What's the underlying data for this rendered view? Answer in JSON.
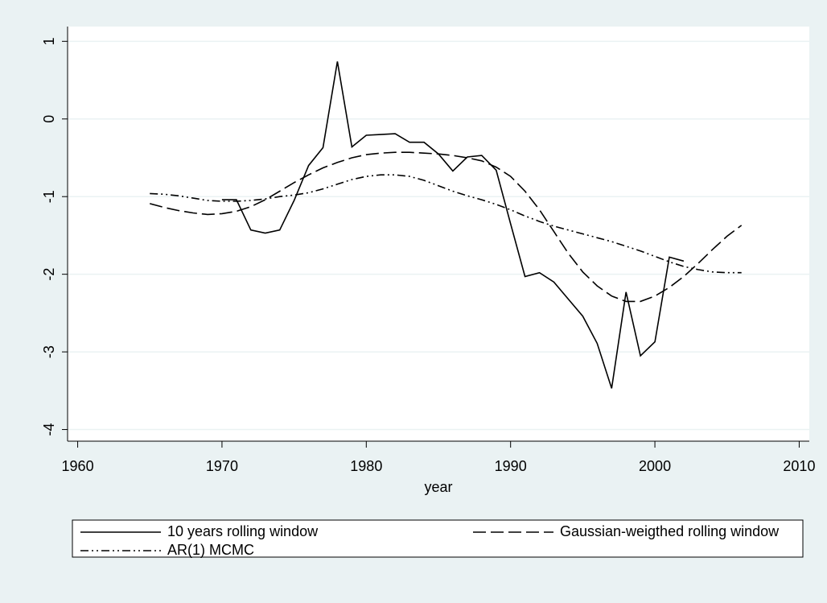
{
  "chart_data": {
    "type": "line",
    "x_label": "year",
    "x": [
      1965,
      1966,
      1967,
      1968,
      1969,
      1970,
      1971,
      1972,
      1973,
      1974,
      1975,
      1976,
      1977,
      1978,
      1979,
      1980,
      1981,
      1982,
      1983,
      1984,
      1985,
      1986,
      1987,
      1988,
      1989,
      1990,
      1991,
      1992,
      1993,
      1994,
      1995,
      1996,
      1997,
      1998,
      1999,
      2000,
      2001,
      2002,
      2003,
      2004,
      2005,
      2006
    ],
    "series": [
      {
        "name": "10 years rolling window",
        "color": "#000000",
        "dash": "solid",
        "values": [
          null,
          null,
          null,
          null,
          null,
          -1.04,
          -1.04,
          -1.43,
          -1.47,
          -1.43,
          -1.05,
          -0.6,
          -0.37,
          0.74,
          -0.36,
          -0.21,
          -0.2,
          -0.19,
          -0.3,
          -0.3,
          -0.45,
          -0.67,
          -0.49,
          -0.47,
          -0.66,
          -1.35,
          -2.03,
          -1.98,
          -2.1,
          -2.32,
          -2.54,
          -2.89,
          -3.47,
          -2.23,
          -3.05,
          -2.87,
          -1.78,
          -1.83,
          null,
          null,
          null,
          null
        ]
      },
      {
        "name": "Gaussian-weigthed rolling window",
        "color": "#000000",
        "dash": "dashed",
        "values": [
          -1.09,
          -1.14,
          -1.18,
          -1.21,
          -1.23,
          -1.22,
          -1.19,
          -1.13,
          -1.04,
          -0.93,
          -0.82,
          -0.72,
          -0.63,
          -0.56,
          -0.5,
          -0.46,
          -0.44,
          -0.43,
          -0.43,
          -0.44,
          -0.45,
          -0.47,
          -0.5,
          -0.54,
          -0.62,
          -0.74,
          -0.93,
          -1.17,
          -1.45,
          -1.73,
          -1.97,
          -2.15,
          -2.28,
          -2.35,
          -2.35,
          -2.28,
          -2.17,
          -2.03,
          -1.86,
          -1.68,
          -1.51,
          -1.37
        ]
      },
      {
        "name": "AR(1) MCMC",
        "color": "#000000",
        "dash": "dashdot",
        "values": [
          -0.96,
          -0.97,
          -0.99,
          -1.02,
          -1.05,
          -1.06,
          -1.06,
          -1.05,
          -1.03,
          -1.0,
          -0.98,
          -0.95,
          -0.9,
          -0.84,
          -0.78,
          -0.74,
          -0.72,
          -0.72,
          -0.74,
          -0.79,
          -0.86,
          -0.93,
          -0.99,
          -1.04,
          -1.1,
          -1.17,
          -1.25,
          -1.32,
          -1.38,
          -1.43,
          -1.48,
          -1.53,
          -1.58,
          -1.64,
          -1.7,
          -1.77,
          -1.84,
          -1.9,
          -1.94,
          -1.97,
          -1.98,
          -1.98
        ]
      }
    ],
    "xlim": [
      1959.3,
      2010.7
    ],
    "xticks": [
      1960,
      1970,
      1980,
      1990,
      2000,
      2010
    ],
    "ylim": [
      -4.15,
      1.19
    ],
    "yticks": [
      1,
      0,
      -1,
      -2,
      -3,
      -4
    ],
    "grid": true,
    "legend": "bottom"
  }
}
